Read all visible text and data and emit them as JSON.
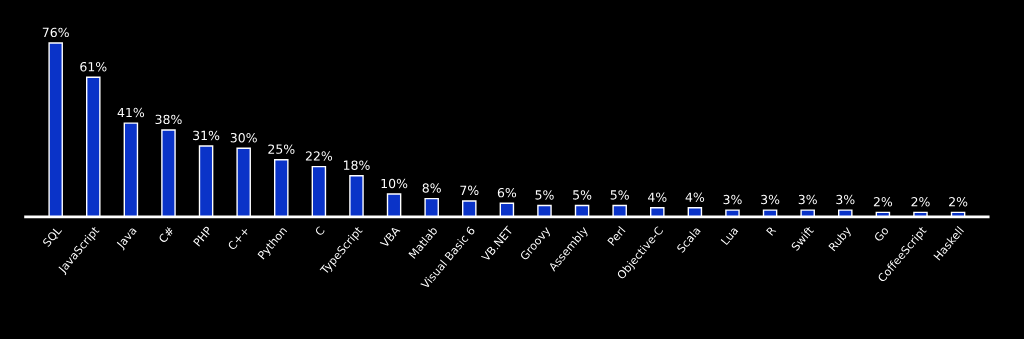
{
  "chart_data": {
    "type": "bar",
    "categories": [
      "SQL",
      "JavaScript",
      "Java",
      "C#",
      "PHP",
      "C++",
      "Python",
      "C",
      "TypeScript",
      "VBA",
      "Matlab",
      "Visual Basic 6",
      "VB.NET",
      "Groovy",
      "Assembly",
      "Perl",
      "Objective-C",
      "Scala",
      "Lua",
      "R",
      "Swift",
      "Ruby",
      "Go",
      "CoffeeScript",
      "Haskell"
    ],
    "values": [
      76,
      61,
      41,
      38,
      31,
      30,
      25,
      22,
      18,
      10,
      8,
      7,
      6,
      5,
      5,
      5,
      4,
      4,
      3,
      3,
      3,
      3,
      2,
      2,
      2
    ],
    "value_labels": [
      "76%",
      "61%",
      "41%",
      "38%",
      "31%",
      "30%",
      "25%",
      "22%",
      "18%",
      "10%",
      "8%",
      "7%",
      "6%",
      "5%",
      "5%",
      "5%",
      "4%",
      "4%",
      "3%",
      "3%",
      "3%",
      "3%",
      "2%",
      "2%",
      "2%"
    ],
    "color": "#0a33c8",
    "grid": false,
    "legend": false
  }
}
